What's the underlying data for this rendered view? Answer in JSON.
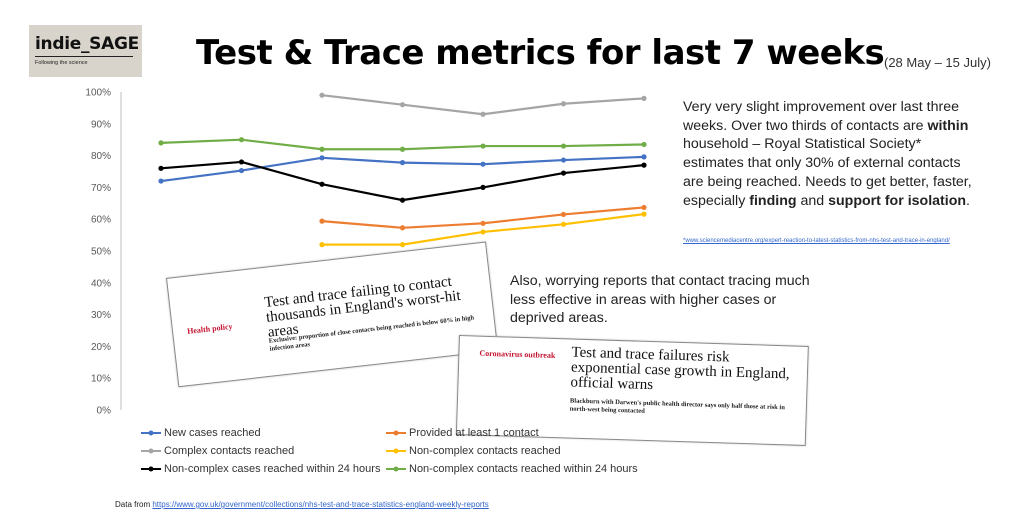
{
  "logo": {
    "main": "indie_SAGE",
    "sub": "Following the science"
  },
  "title": "Test & Trace metrics for last 7 weeks",
  "subtitle": "(28 May – 15 July)",
  "notes": {
    "first_parts": [
      "Very very slight improvement over last three weeks. Over two thirds of contacts are ",
      "within",
      " household – Royal Statistical Society* estimates that only 30% of external contacts are being reached. Needs to get better, faster, especially ",
      "finding",
      " and ",
      "support for isolation",
      "."
    ],
    "link": "*www.sciencemediacentre.org/expert-reaction-to-latest-statistics-from-nhs-test-and-trace-in-england/",
    "second": "Also, worrying reports that  contact tracing much less effective in areas with higher cases or deprived areas."
  },
  "clippings": [
    {
      "tag": "Health policy",
      "headline": "Test and trace failing to contact thousands in England's worst-hit areas",
      "sub": "Exclusive: proportion of close contacts being reached is below 60% in high infection areas"
    },
    {
      "tag": "Coronavirus outbreak",
      "headline": "Test and trace failures risk exponential case growth in England, official warns",
      "sub": "Blackburn with Darwen's public health director says only half those at risk in north-west being contacted"
    }
  ],
  "footer": {
    "prefix": "Data from ",
    "link": "https://www.gov.uk/government/collections/nhs-test-and-trace-statistics-england-weekly-reports"
  },
  "chart_data": {
    "type": "line",
    "x": [
      1,
      2,
      3,
      4,
      5,
      6,
      7
    ],
    "ylim": [
      0,
      100
    ],
    "yticks": [
      "0%",
      "10%",
      "20%",
      "30%",
      "40%",
      "50%",
      "60%",
      "70%",
      "80%",
      "90%",
      "100%"
    ],
    "grid": false,
    "legend_position": "bottom",
    "series": [
      {
        "name": "New cases reached",
        "color": "#4472c4",
        "values": [
          72,
          75.3,
          79.3,
          77.8,
          77.3,
          78.6,
          79.6
        ]
      },
      {
        "name": "Provided at least 1 contact",
        "color": "#ed7d31",
        "values": [
          null,
          null,
          59.4,
          57.3,
          58.7,
          61.5,
          63.7
        ]
      },
      {
        "name": "Complex contacts reached",
        "color": "#a5a5a5",
        "values": [
          null,
          null,
          99,
          96,
          93,
          96.3,
          98
        ]
      },
      {
        "name": "Non-complex contacts reached",
        "color": "#ffc000",
        "values": [
          null,
          null,
          52,
          52,
          56,
          58.4,
          61.6
        ]
      },
      {
        "name": "Non-complex cases reached within 24 hours",
        "color": "#000000",
        "values": [
          76,
          78,
          71,
          66,
          70,
          74.5,
          77
        ]
      },
      {
        "name": "Non-complex contacts reached within 24 hours",
        "color": "#70ad47",
        "values": [
          84,
          85,
          82,
          82,
          83,
          83,
          83.5
        ]
      }
    ]
  }
}
